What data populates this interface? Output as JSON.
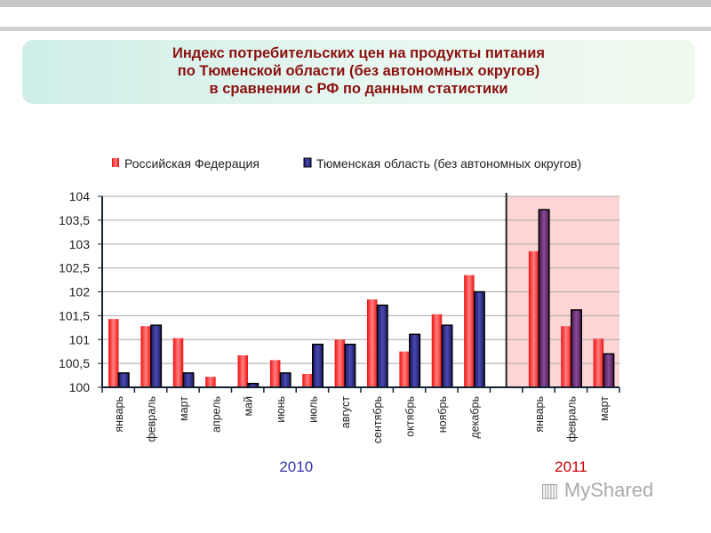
{
  "title": "Индекс потребительских цен на продукты питания\nпо Тюменской области  (без автономных округов)\nв сравнении с РФ по данным статистики",
  "chart_data": {
    "type": "bar",
    "title": "Индекс потребительских цен на продукты питания по Тюменской области (без автономных округов) в сравнении с РФ по данным статистики",
    "categories": [
      "январь",
      "февраль",
      "март",
      "апрель",
      "май",
      "июнь",
      "июль",
      "август",
      "сентябрь",
      "октябрь",
      "ноябрь",
      "декабрь",
      "январь",
      "февраль",
      "март"
    ],
    "groups": [
      {
        "label": "2010",
        "count": 12,
        "color": "#3333aa"
      },
      {
        "label": "2011",
        "count": 3,
        "color": "#cc0000"
      }
    ],
    "series": [
      {
        "name": "Российская Федерация",
        "color": "#ee2222",
        "values": [
          101.43,
          101.28,
          101.03,
          100.22,
          100.67,
          100.57,
          100.28,
          101.0,
          101.84,
          100.75,
          101.53,
          102.35,
          102.85,
          101.28,
          101.02
        ]
      },
      {
        "name": "Тюменская область (без автономных округов)",
        "color": "#2a2a80",
        "values": [
          100.3,
          101.3,
          100.3,
          100.0,
          100.08,
          100.3,
          100.9,
          100.9,
          101.72,
          101.11,
          101.3,
          102.0,
          103.72,
          101.62,
          100.7
        ]
      }
    ],
    "yticks": [
      "100",
      "100,5",
      "101",
      "101,5",
      "102",
      "102,5",
      "103",
      "103,5",
      "104"
    ],
    "ylim": [
      100,
      104
    ],
    "grid": true,
    "legend": "top",
    "highlight_color": "#fdd5d5"
  },
  "logo": {
    "text": "MyShared"
  }
}
